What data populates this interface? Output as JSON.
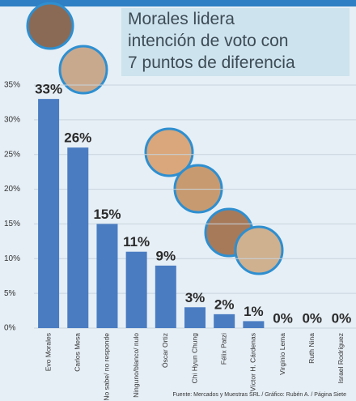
{
  "chart_data": {
    "type": "bar",
    "title": "Morales lidera\nintención de voto con\n7 puntos de diferencia",
    "categories": [
      "Evo Morales",
      "Carlos Mesa",
      "No sabe/ no responde",
      "Ninguno/blanco/ nulo",
      "Óscar Ortiz",
      "Chi Hyun Chung",
      "Félix Patzi",
      "Víctor H. Cárdenas",
      "Virginio Lema",
      "Ruth Nina",
      "Israel Rodríguez"
    ],
    "values": [
      33,
      26,
      15,
      11,
      9,
      3,
      2,
      1,
      0,
      0,
      0
    ],
    "value_labels": [
      "33%",
      "26%",
      "15%",
      "11%",
      "9%",
      "3%",
      "2%",
      "1%",
      "0%",
      "0%",
      "0%"
    ],
    "color": "#4a7cc2",
    "ylim": [
      0,
      35
    ],
    "yticks": [
      {
        "value": 0,
        "label": "0%"
      },
      {
        "value": 5,
        "label": "5%"
      },
      {
        "value": 10,
        "label": "10%"
      },
      {
        "value": 15,
        "label": "15%"
      },
      {
        "value": 20,
        "label": "20%"
      },
      {
        "value": 25,
        "label": "25%"
      },
      {
        "value": 30,
        "label": "30%"
      },
      {
        "value": 35,
        "label": "35%"
      }
    ],
    "grid": true,
    "source": "Fuente: Mercados y Muestras SRL / Gráfico: Rubén A. / Página Siete"
  }
}
